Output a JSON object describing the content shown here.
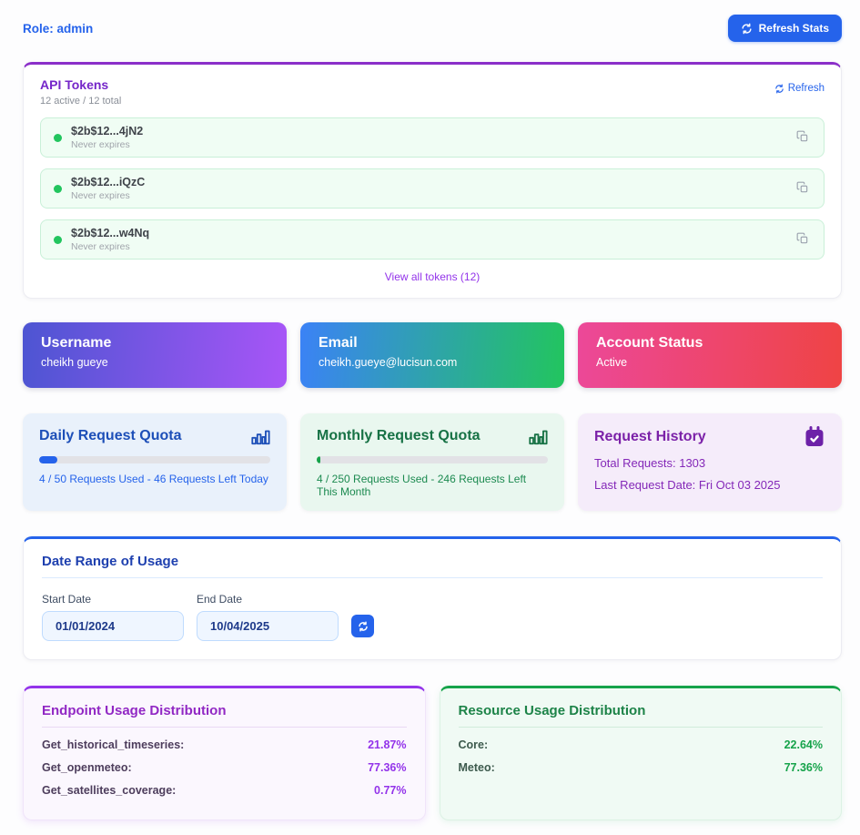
{
  "header": {
    "role_label": "Role: admin",
    "refresh_button": "Refresh Stats"
  },
  "api_tokens": {
    "title": "API Tokens",
    "subtitle": "12 active / 12 total",
    "refresh_link": "Refresh",
    "tokens": [
      {
        "value": "$2b$12...4jN2",
        "expiry": "Never expires"
      },
      {
        "value": "$2b$12...iQzC",
        "expiry": "Never expires"
      },
      {
        "value": "$2b$12...w4Nq",
        "expiry": "Never expires"
      }
    ],
    "view_all": "View all tokens (12)"
  },
  "profile_cards": {
    "username": {
      "title": "Username",
      "value": "cheikh gueye"
    },
    "email": {
      "title": "Email",
      "value": "cheikh.gueye@lucisun.com"
    },
    "status": {
      "title": "Account Status",
      "value": "Active"
    }
  },
  "quotas": {
    "daily": {
      "title": "Daily Request Quota",
      "caption": "4 / 50 Requests Used - 46 Requests Left Today",
      "percent_used": 8
    },
    "monthly": {
      "title": "Monthly Request Quota",
      "caption": "4 / 250 Requests Used - 246 Requests Left This Month",
      "percent_used": 1.6
    },
    "history": {
      "title": "Request History",
      "total_line": "Total Requests: 1303",
      "last_line": "Last Request Date: Fri Oct 03 2025"
    }
  },
  "date_range": {
    "title": "Date Range of Usage",
    "start_label": "Start Date",
    "start_value": "01/01/2024",
    "end_label": "End Date",
    "end_value": "10/04/2025"
  },
  "endpoint_usage": {
    "title": "Endpoint Usage Distribution",
    "rows": [
      {
        "label": "Get_historical_timeseries:",
        "value": "21.87%"
      },
      {
        "label": "Get_openmeteo:",
        "value": "77.36%"
      },
      {
        "label": "Get_satellites_coverage:",
        "value": "0.77%"
      }
    ]
  },
  "resource_usage": {
    "title": "Resource Usage Distribution",
    "rows": [
      {
        "label": "Core:",
        "value": "22.64%"
      },
      {
        "label": "Meteo:",
        "value": "77.36%"
      }
    ]
  },
  "colors": {
    "primary_blue": "#2563eb",
    "purple_accent": "#9333ea",
    "green_accent": "#16a34a",
    "token_green": "#22c55e",
    "username_gradient": [
      "#4d55d2",
      "#a855f7"
    ],
    "email_gradient": [
      "#3b82f6",
      "#22c55e"
    ],
    "status_gradient": [
      "#ec4899",
      "#ef4444"
    ]
  }
}
